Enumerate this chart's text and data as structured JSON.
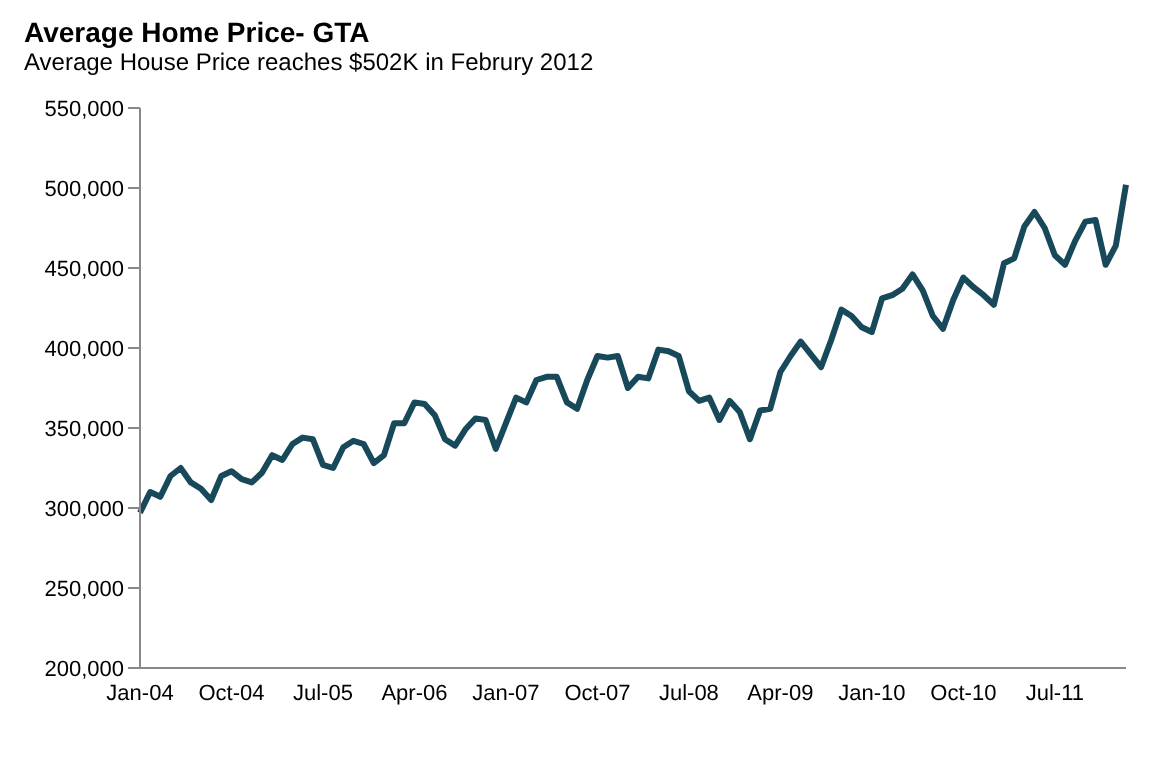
{
  "chart_data": {
    "type": "line",
    "title": "Average Home Price- GTA",
    "subtitle": "Average House Price reaches $502K in Februry 2012",
    "categories": [
      "Jan-04",
      null,
      null,
      null,
      null,
      null,
      null,
      null,
      null,
      "Oct-04",
      null,
      null,
      null,
      null,
      null,
      null,
      null,
      null,
      "Jul-05",
      null,
      null,
      null,
      null,
      null,
      null,
      null,
      null,
      "Apr-06",
      null,
      null,
      null,
      null,
      null,
      null,
      null,
      null,
      "Jan-07",
      null,
      null,
      null,
      null,
      null,
      null,
      null,
      null,
      "Oct-07",
      null,
      null,
      null,
      null,
      null,
      null,
      null,
      null,
      "Jul-08",
      null,
      null,
      null,
      null,
      null,
      null,
      null,
      null,
      "Apr-09",
      null,
      null,
      null,
      null,
      null,
      null,
      null,
      null,
      "Jan-10",
      null,
      null,
      null,
      null,
      null,
      null,
      null,
      null,
      "Oct-10",
      null,
      null,
      null,
      null,
      null,
      null,
      null,
      null,
      "Jul-11",
      null,
      null,
      null,
      null,
      null,
      null,
      null
    ],
    "series": [
      {
        "color": "#17495a",
        "values": [
          297000,
          310000,
          307000,
          320000,
          325000,
          316000,
          312000,
          305000,
          320000,
          323000,
          318000,
          316000,
          322000,
          333000,
          330000,
          340000,
          344000,
          343000,
          327000,
          325000,
          338000,
          342000,
          340000,
          328000,
          333000,
          353000,
          353000,
          366000,
          365000,
          358000,
          343000,
          339000,
          349000,
          356000,
          355000,
          337000,
          353000,
          369000,
          366000,
          380000,
          382000,
          382000,
          366000,
          362000,
          380000,
          395000,
          394000,
          395000,
          375000,
          382000,
          381000,
          399000,
          398000,
          395000,
          373000,
          367000,
          369000,
          355000,
          367000,
          360000,
          343000,
          361000,
          362000,
          385000,
          395000,
          404000,
          396000,
          388000,
          405000,
          424000,
          420000,
          413000,
          410000,
          431000,
          433000,
          437000,
          446000,
          436000,
          420000,
          412000,
          430000,
          444000,
          438000,
          433000,
          427000,
          453000,
          456000,
          476000,
          485000,
          475000,
          458000,
          452000,
          467000,
          479000,
          480000,
          452000,
          464000,
          502000
        ]
      }
    ],
    "ylim": [
      200000,
      550000
    ],
    "yticks": [
      {
        "value": 200000,
        "label": "200,000"
      },
      {
        "value": 250000,
        "label": "250,000"
      },
      {
        "value": 300000,
        "label": "300,000"
      },
      {
        "value": 350000,
        "label": "350,000"
      },
      {
        "value": 400000,
        "label": "400,000"
      },
      {
        "value": 450000,
        "label": "450,000"
      },
      {
        "value": 500000,
        "label": "500,000"
      },
      {
        "value": 550000,
        "label": "550,000"
      }
    ],
    "grid": false,
    "legend": false,
    "marker": "none",
    "line_style": "solid"
  }
}
